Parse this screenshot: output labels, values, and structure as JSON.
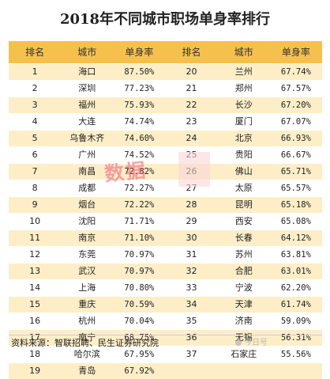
{
  "title": "2018年不同城市职场单身率排行",
  "headers": [
    "排名",
    "城市",
    "单身率",
    "排名",
    "城市",
    "单身率"
  ],
  "rows": [
    {
      "left": {
        "rank": "1",
        "city": "海口",
        "rate": "87.50%"
      },
      "right": {
        "rank": "20",
        "city": "兰州",
        "rate": "67.74%"
      }
    },
    {
      "left": {
        "rank": "2",
        "city": "深圳",
        "rate": "77.23%"
      },
      "right": {
        "rank": "21",
        "city": "郑州",
        "rate": "67.57%"
      }
    },
    {
      "left": {
        "rank": "3",
        "city": "福州",
        "rate": "75.93%"
      },
      "right": {
        "rank": "22",
        "city": "长沙",
        "rate": "67.20%"
      }
    },
    {
      "left": {
        "rank": "4",
        "city": "大连",
        "rate": "74.74%"
      },
      "right": {
        "rank": "23",
        "city": "厦门",
        "rate": "67.07%"
      }
    },
    {
      "left": {
        "rank": "5",
        "city": "乌鲁木齐",
        "rate": "74.60%"
      },
      "right": {
        "rank": "24",
        "city": "北京",
        "rate": "66.93%"
      }
    },
    {
      "left": {
        "rank": "6",
        "city": "广州",
        "rate": "74.52%"
      },
      "right": {
        "rank": "25",
        "city": "贵阳",
        "rate": "66.67%"
      }
    },
    {
      "left": {
        "rank": "7",
        "city": "南昌",
        "rate": "72.82%"
      },
      "right": {
        "rank": "26",
        "city": "佛山",
        "rate": "65.71%"
      }
    },
    {
      "left": {
        "rank": "8",
        "city": "成都",
        "rate": "72.27%"
      },
      "right": {
        "rank": "27",
        "city": "太原",
        "rate": "65.57%"
      }
    },
    {
      "left": {
        "rank": "9",
        "city": "烟台",
        "rate": "72.22%"
      },
      "right": {
        "rank": "28",
        "city": "昆明",
        "rate": "65.18%"
      }
    },
    {
      "left": {
        "rank": "10",
        "city": "沈阳",
        "rate": "71.71%"
      },
      "right": {
        "rank": "29",
        "city": "西安",
        "rate": "65.08%"
      }
    },
    {
      "left": {
        "rank": "11",
        "city": "南京",
        "rate": "71.10%"
      },
      "right": {
        "rank": "30",
        "city": "长春",
        "rate": "64.12%"
      }
    },
    {
      "left": {
        "rank": "12",
        "city": "东莞",
        "rate": "70.97%"
      },
      "right": {
        "rank": "31",
        "city": "苏州",
        "rate": "63.81%"
      }
    },
    {
      "left": {
        "rank": "13",
        "city": "武汉",
        "rate": "70.97%"
      },
      "right": {
        "rank": "32",
        "city": "合肥",
        "rate": "63.01%"
      }
    },
    {
      "left": {
        "rank": "14",
        "city": "上海",
        "rate": "70.80%"
      },
      "right": {
        "rank": "33",
        "city": "宁波",
        "rate": "62.20%"
      }
    },
    {
      "left": {
        "rank": "15",
        "city": "重庆",
        "rate": "70.59%"
      },
      "right": {
        "rank": "34",
        "city": "天津",
        "rate": "61.74%"
      }
    },
    {
      "left": {
        "rank": "16",
        "city": "杭州",
        "rate": "70.04%"
      },
      "right": {
        "rank": "35",
        "city": "济南",
        "rate": "59.09%"
      }
    },
    {
      "left": {
        "rank": "17",
        "city": "南宁",
        "rate": "68.75%"
      },
      "right": {
        "rank": "36",
        "city": "无锡",
        "rate": "56.31%"
      }
    },
    {
      "left": {
        "rank": "18",
        "city": "哈尔滨",
        "rate": "67.95%"
      },
      "right": {
        "rank": "37",
        "city": "石家庄",
        "rate": "55.56%"
      }
    },
    {
      "left": {
        "rank": "19",
        "city": "青岛",
        "rate": "67.92%"
      },
      "right": {
        "rank": "",
        "city": "",
        "rate": ""
      }
    }
  ],
  "source": "资料来源：智联招聘、民生证券研究院",
  "watermark": {
    "text": "数据",
    "logo_text": "今日号"
  },
  "colors": {
    "header_bg": "#f6c04d",
    "stripe_bg": "#fdeec8",
    "watermark": "#f05a78"
  }
}
